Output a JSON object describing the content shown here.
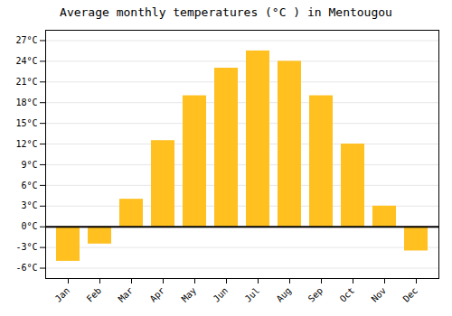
{
  "chart_data": {
    "type": "bar",
    "title": "Average monthly temperatures (°C ) in Mentougou",
    "categories": [
      "Jan",
      "Feb",
      "Mar",
      "Apr",
      "May",
      "Jun",
      "Jul",
      "Aug",
      "Sep",
      "Oct",
      "Nov",
      "Dec"
    ],
    "values": [
      -5.0,
      -2.5,
      4.0,
      12.5,
      19.0,
      23.0,
      25.5,
      24.0,
      19.0,
      12.0,
      3.0,
      -3.5
    ],
    "color": "#FFC020",
    "ylim": [
      -7.5,
      28.5
    ],
    "yticks": [
      {
        "value": -6,
        "label": "-6°C"
      },
      {
        "value": -3,
        "label": "-3°C"
      },
      {
        "value": 0,
        "label": "0°C"
      },
      {
        "value": 3,
        "label": "3°C"
      },
      {
        "value": 6,
        "label": "6°C"
      },
      {
        "value": 9,
        "label": "9°C"
      },
      {
        "value": 12,
        "label": "12°C"
      },
      {
        "value": 15,
        "label": "15°C"
      },
      {
        "value": 18,
        "label": "18°C"
      },
      {
        "value": 21,
        "label": "21°C"
      },
      {
        "value": 24,
        "label": "24°C"
      },
      {
        "value": 27,
        "label": "27°C"
      }
    ],
    "grid": true
  }
}
